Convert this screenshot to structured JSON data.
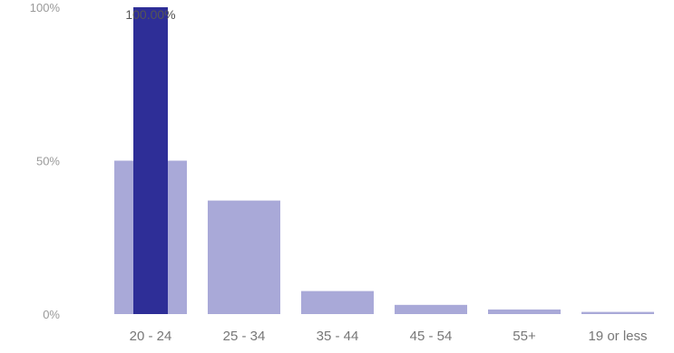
{
  "chart_data": {
    "type": "bar",
    "categories": [
      "20 - 24",
      "25 - 34",
      "35 - 44",
      "45 - 54",
      "55+",
      "19 or less"
    ],
    "series": [
      {
        "values": [
          50.0,
          37.0,
          7.5,
          3.0,
          1.5,
          0.7
        ],
        "color": "#a9a9d8"
      },
      {
        "values": [
          100.0,
          null,
          null,
          null,
          null,
          null
        ],
        "color": "#2e2e97"
      }
    ],
    "data_labels": [
      "100.00%",
      "",
      "",
      "",
      "",
      ""
    ],
    "y_ticks": [
      "0%",
      "50%",
      "100%"
    ],
    "ylim": [
      0,
      100
    ],
    "grid": false,
    "legend": "none"
  }
}
